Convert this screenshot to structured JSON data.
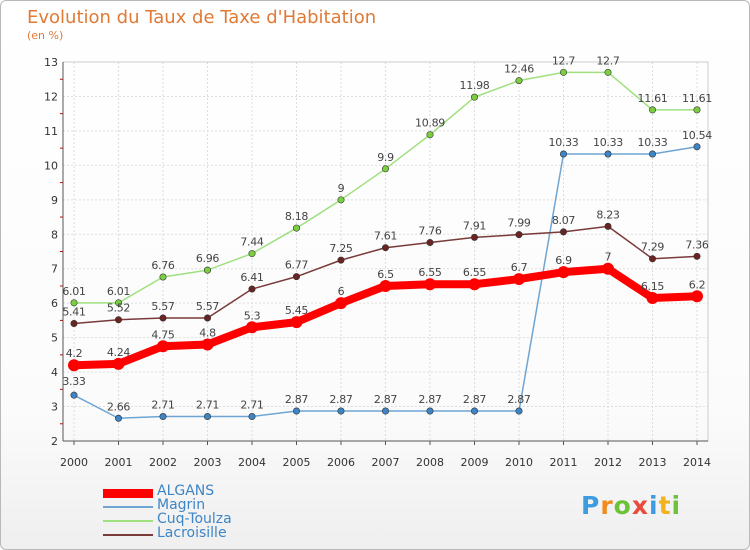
{
  "chart_data": {
    "type": "line",
    "title": "Evolution du Taux de Taxe d'Habitation",
    "ylabel": "(en %)",
    "xlabel": "",
    "ylim": [
      2,
      13
    ],
    "yticks": [
      "2",
      "3",
      "4",
      "5",
      "6",
      "7",
      "8",
      "9",
      "10",
      "11",
      "12",
      "13"
    ],
    "x": [
      "2000",
      "2001",
      "2002",
      "2003",
      "2004",
      "2005",
      "2006",
      "2007",
      "2008",
      "2009",
      "2010",
      "2011",
      "2012",
      "2013",
      "2014"
    ],
    "grid": true,
    "legend_position": "bottom-left",
    "series": [
      {
        "name": "ALGANS",
        "color": "#ff0000",
        "marker_color": "#ff0000",
        "width": "thick",
        "values": [
          4.2,
          4.24,
          4.75,
          4.8,
          5.3,
          5.45,
          6,
          6.5,
          6.55,
          6.55,
          6.7,
          6.9,
          7,
          6.15,
          6.2
        ],
        "labels": [
          "4.2",
          "4.24",
          "4.75",
          "4.8",
          "5.3",
          "5.45",
          "6",
          "6.5",
          "6.55",
          "6.55",
          "6.7",
          "6.9",
          "7",
          "6.15",
          "6.2"
        ]
      },
      {
        "name": "Magrin",
        "color": "#6fa5d2",
        "marker_color": "#3d85c6",
        "width": "thin",
        "values": [
          3.33,
          2.66,
          2.71,
          2.71,
          2.71,
          2.87,
          2.87,
          2.87,
          2.87,
          2.87,
          2.87,
          10.33,
          10.33,
          10.33,
          10.54
        ],
        "labels": [
          "3.33",
          "2.66",
          "2.71",
          "2.71",
          "2.71",
          "2.87",
          "2.87",
          "2.87",
          "2.87",
          "2.87",
          "2.87",
          "10.33",
          "10.33",
          "10.33",
          "10.54"
        ]
      },
      {
        "name": "Cuq-Toulza",
        "color": "#9fe07f",
        "marker_color": "#7bcf3f",
        "width": "thin",
        "values": [
          6.01,
          6.01,
          6.76,
          6.96,
          7.44,
          8.18,
          9,
          9.9,
          10.89,
          11.98,
          12.46,
          12.7,
          12.7,
          11.61,
          11.61
        ],
        "labels": [
          "6.01",
          "6.01",
          "6.76",
          "6.96",
          "7.44",
          "8.18",
          "9",
          "9.9",
          "10.89",
          "11.98",
          "12.46",
          "12.7",
          "12.7",
          "11.61",
          "11.61"
        ]
      },
      {
        "name": "Lacroisille",
        "color": "#7a3a3a",
        "marker_color": "#6b2424",
        "width": "thin",
        "values": [
          5.41,
          5.52,
          5.57,
          5.57,
          6.41,
          6.77,
          7.25,
          7.61,
          7.76,
          7.91,
          7.99,
          8.07,
          8.23,
          7.29,
          7.36
        ],
        "labels": [
          "5.41",
          "5.52",
          "5.57",
          "5.57",
          "6.41",
          "6.77",
          "7.25",
          "7.61",
          "7.76",
          "7.91",
          "7.99",
          "8.07",
          "8.23",
          "7.29",
          "7.36"
        ]
      }
    ]
  },
  "logo": {
    "text": "Proxiti",
    "colors": [
      "#3d9be0",
      "#f08c1e",
      "#6cc33a",
      "#e84b3a",
      "#3d9be0",
      "#f2b21b",
      "#6cc33a"
    ]
  }
}
